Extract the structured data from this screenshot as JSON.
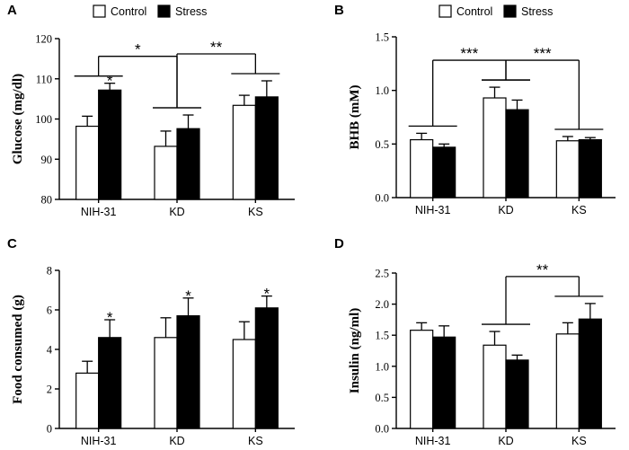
{
  "legend": {
    "control": "Control",
    "stress": "Stress"
  },
  "colors": {
    "control": "#ffffff",
    "stress": "#000000",
    "stroke": "#000000"
  },
  "chart_data": [
    {
      "id": "A",
      "panel_label": "A",
      "type": "bar",
      "ylabel": "Glucose (mg/dl)",
      "categories": [
        "NIH-31",
        "KD",
        "KS"
      ],
      "ylim": [
        80,
        120
      ],
      "yticks": [
        "80",
        "90",
        "100",
        "110",
        "120"
      ],
      "series": [
        {
          "name": "Control",
          "values": [
            98.2,
            93.2,
            103.4
          ],
          "errors": [
            2.5,
            3.8,
            2.5
          ]
        },
        {
          "name": "Stress",
          "values": [
            107.2,
            97.6,
            105.5
          ],
          "errors": [
            1.7,
            3.4,
            4.0
          ]
        }
      ],
      "asterisks": [
        {
          "series": 1,
          "category": 0,
          "text": "*"
        }
      ],
      "comparisons": [
        {
          "from": 0,
          "to": 1,
          "text": "*"
        },
        {
          "from": 1,
          "to": 2,
          "text": "**"
        }
      ]
    },
    {
      "id": "B",
      "panel_label": "B",
      "type": "bar",
      "ylabel": "BHB (mM)",
      "categories": [
        "NIH-31",
        "KD",
        "KS"
      ],
      "ylim": [
        0,
        1.5
      ],
      "yticks": [
        "0.0",
        "0.5",
        "1.0",
        "1.5"
      ],
      "series": [
        {
          "name": "Control",
          "values": [
            0.54,
            0.93,
            0.53
          ],
          "errors": [
            0.06,
            0.1,
            0.04
          ]
        },
        {
          "name": "Stress",
          "values": [
            0.47,
            0.82,
            0.54
          ],
          "errors": [
            0.03,
            0.09,
            0.02
          ]
        }
      ],
      "asterisks": [],
      "comparisons": [
        {
          "from": 0,
          "to": 1,
          "text": "***"
        },
        {
          "from": 1,
          "to": 2,
          "text": "***"
        }
      ]
    },
    {
      "id": "C",
      "panel_label": "C",
      "type": "bar",
      "ylabel": "Food consumed (g)",
      "categories": [
        "NIH-31",
        "KD",
        "KS"
      ],
      "ylim": [
        0,
        8
      ],
      "yticks": [
        "0",
        "2",
        "4",
        "6",
        "8"
      ],
      "series": [
        {
          "name": "Control",
          "values": [
            2.8,
            4.6,
            4.5
          ],
          "errors": [
            0.6,
            1.0,
            0.9
          ]
        },
        {
          "name": "Stress",
          "values": [
            4.6,
            5.7,
            6.1
          ],
          "errors": [
            0.9,
            0.9,
            0.6
          ]
        }
      ],
      "asterisks": [
        {
          "series": 1,
          "category": 0,
          "text": "*"
        },
        {
          "series": 1,
          "category": 1,
          "text": "*"
        },
        {
          "series": 1,
          "category": 2,
          "text": "*"
        }
      ],
      "comparisons": []
    },
    {
      "id": "D",
      "panel_label": "D",
      "type": "bar",
      "ylabel": "Insulin (ng/ml)",
      "categories": [
        "NIH-31",
        "KD",
        "KS"
      ],
      "ylim": [
        0,
        2.5
      ],
      "yticks": [
        "0.0",
        "0.5",
        "1.0",
        "1.5",
        "2.0",
        "2.5"
      ],
      "series": [
        {
          "name": "Control",
          "values": [
            1.58,
            1.34,
            1.52
          ],
          "errors": [
            0.12,
            0.22,
            0.18
          ]
        },
        {
          "name": "Stress",
          "values": [
            1.47,
            1.1,
            1.76
          ],
          "errors": [
            0.18,
            0.08,
            0.25
          ]
        }
      ],
      "asterisks": [],
      "comparisons": [
        {
          "from": 1,
          "to": 2,
          "text": "**"
        }
      ]
    }
  ]
}
